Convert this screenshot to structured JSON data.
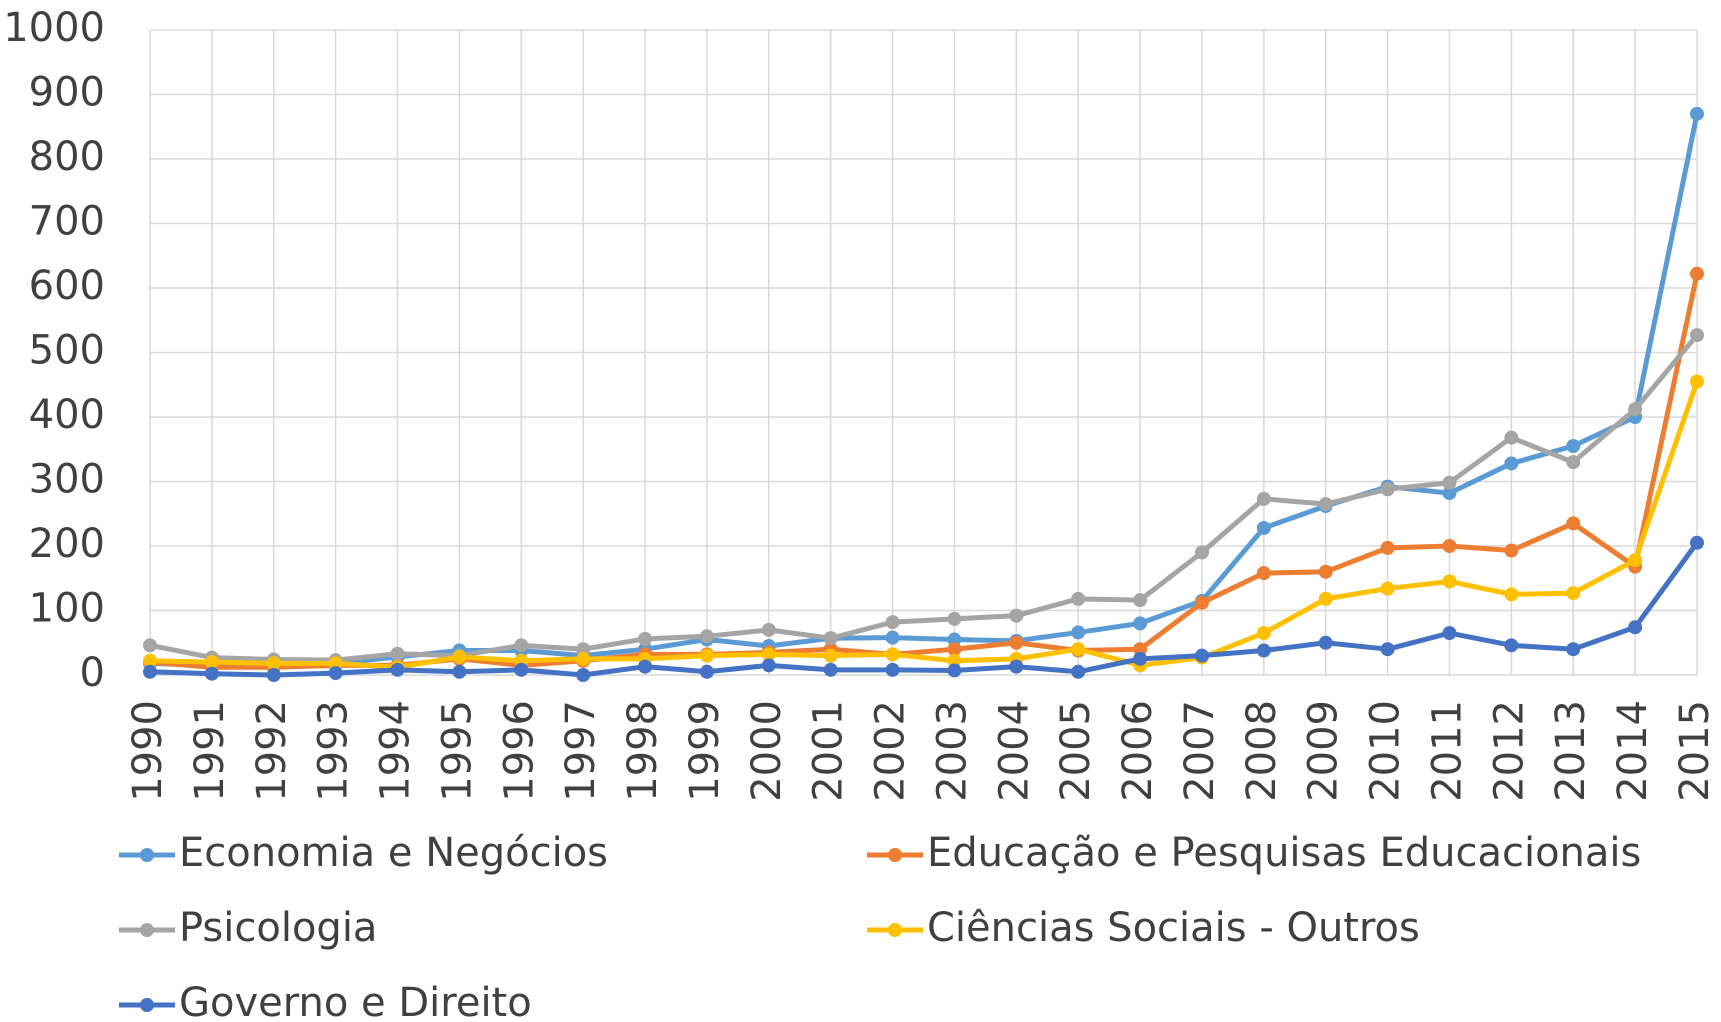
{
  "chart_data": {
    "type": "line",
    "x": [
      1990,
      1991,
      1992,
      1993,
      1994,
      1995,
      1996,
      1997,
      1998,
      1999,
      2000,
      2001,
      2002,
      2003,
      2004,
      2005,
      2006,
      2007,
      2008,
      2009,
      2010,
      2011,
      2012,
      2013,
      2014,
      2015
    ],
    "series": [
      {
        "name": "Economia e Negócios",
        "color": "#5B9BD5",
        "values": [
          18,
          15,
          15,
          18,
          28,
          38,
          38,
          30,
          40,
          55,
          45,
          57,
          58,
          55,
          53,
          66,
          80,
          115,
          228,
          262,
          292,
          282,
          328,
          355,
          400,
          870
        ]
      },
      {
        "name": "Educação e Pesquisas Educacionais",
        "color": "#ED7D31",
        "values": [
          20,
          12,
          12,
          15,
          15,
          25,
          15,
          22,
          32,
          32,
          35,
          40,
          32,
          40,
          50,
          38,
          40,
          112,
          158,
          160,
          197,
          200,
          193,
          235,
          168,
          622
        ]
      },
      {
        "name": "Psicologia",
        "color": "#A5A5A5",
        "values": [
          46,
          27,
          24,
          23,
          33,
          30,
          46,
          40,
          56,
          60,
          70,
          57,
          82,
          87,
          92,
          118,
          116,
          190,
          273,
          265,
          288,
          298,
          368,
          330,
          412,
          527
        ]
      },
      {
        "name": "Ciências Sociais - Outros",
        "color": "#FFC000",
        "values": [
          22,
          20,
          18,
          18,
          12,
          28,
          22,
          25,
          25,
          30,
          32,
          30,
          32,
          22,
          25,
          40,
          15,
          27,
          65,
          118,
          134,
          145,
          125,
          127,
          178,
          455
        ]
      },
      {
        "name": "Governo e Direito",
        "color": "#4472C4",
        "values": [
          5,
          2,
          0,
          3,
          8,
          5,
          8,
          0,
          13,
          5,
          15,
          8,
          8,
          7,
          13,
          5,
          25,
          30,
          38,
          50,
          40,
          65,
          46,
          40,
          74,
          205
        ]
      }
    ],
    "xlim": [
      1990,
      2015
    ],
    "ylim": [
      0,
      1000
    ],
    "yticks": [
      0,
      100,
      200,
      300,
      400,
      500,
      600,
      700,
      800,
      900,
      1000
    ],
    "grid": true
  }
}
